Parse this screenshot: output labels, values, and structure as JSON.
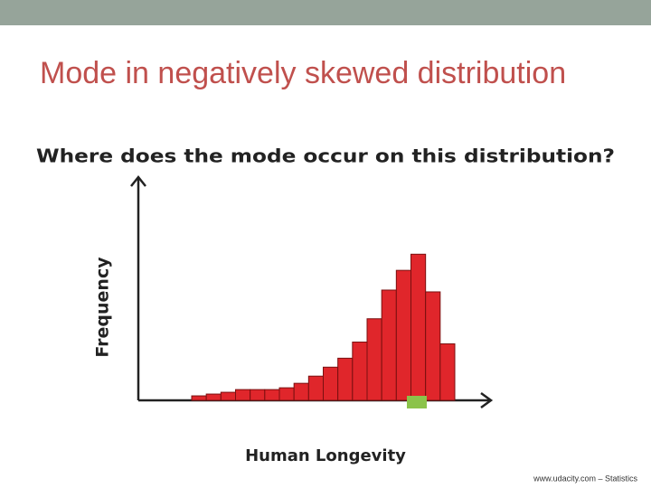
{
  "header": {
    "title": "Mode in negatively skewed distribution"
  },
  "chart_data": {
    "type": "bar",
    "title": "Where does the mode occur on this distribution?",
    "xlabel": "Human Longevity",
    "ylabel": "Frequency",
    "values": [
      5,
      7,
      9,
      12,
      12,
      12,
      14,
      19,
      27,
      37,
      47,
      65,
      91,
      123,
      145,
      163,
      121,
      63
    ],
    "color": "#e0262b",
    "ylim": [
      0,
      250
    ]
  },
  "footer": {
    "text": "www.udacity.com – Statistics"
  }
}
